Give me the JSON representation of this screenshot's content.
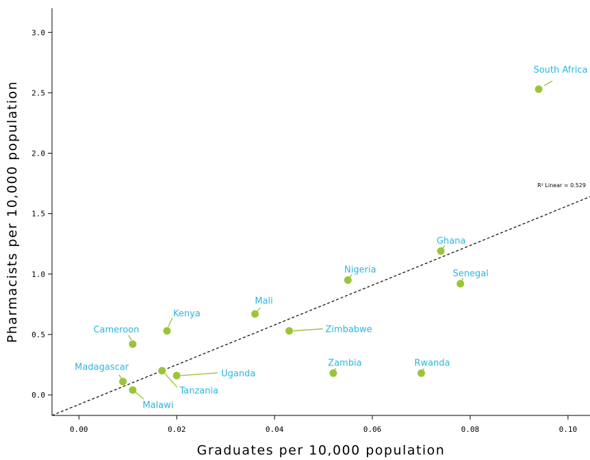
{
  "chart_data": {
    "type": "scatter",
    "xlabel": "Graduates per 10,000 population",
    "ylabel": "Pharmacists per 10,000 population",
    "xlim": [
      -0.0055,
      0.1045
    ],
    "ylim": [
      -0.17,
      3.2
    ],
    "x_ticks": [
      0.0,
      0.02,
      0.04,
      0.06,
      0.08,
      0.1
    ],
    "x_tick_labels": [
      "0.00",
      "0.02",
      "0.04",
      "0.06",
      "0.08",
      "0.10"
    ],
    "y_ticks": [
      0.0,
      0.5,
      1.0,
      1.5,
      2.0,
      2.5,
      3.0
    ],
    "y_tick_labels": [
      "0.0",
      "0.5",
      "1.0",
      "1.5",
      "2.0",
      "2.5",
      "3.0"
    ],
    "grid": false,
    "point_color": "#9bc43a",
    "label_color": "#29b5e0",
    "points": [
      {
        "label": "South Africa",
        "x": 0.094,
        "y": 2.53
      },
      {
        "label": "Ghana",
        "x": 0.074,
        "y": 1.19
      },
      {
        "label": "Senegal",
        "x": 0.078,
        "y": 0.92
      },
      {
        "label": "Nigeria",
        "x": 0.055,
        "y": 0.95
      },
      {
        "label": "Mali",
        "x": 0.036,
        "y": 0.67
      },
      {
        "label": "Kenya",
        "x": 0.018,
        "y": 0.53
      },
      {
        "label": "Cameroon",
        "x": 0.011,
        "y": 0.42
      },
      {
        "label": "Zimbabwe",
        "x": 0.043,
        "y": 0.53
      },
      {
        "label": "Zambia",
        "x": 0.052,
        "y": 0.18
      },
      {
        "label": "Rwanda",
        "x": 0.07,
        "y": 0.18
      },
      {
        "label": "Madagascar",
        "x": 0.009,
        "y": 0.11
      },
      {
        "label": "Malawi",
        "x": 0.011,
        "y": 0.04
      },
      {
        "label": "Tanzania",
        "x": 0.017,
        "y": 0.2
      },
      {
        "label": "Uganda",
        "x": 0.02,
        "y": 0.16
      }
    ],
    "fit_line": {
      "label": "R² Linear = 0.529",
      "style": "dashed",
      "x": [
        -0.0055,
        0.1045
      ],
      "y": [
        -0.17,
        1.64
      ]
    }
  }
}
